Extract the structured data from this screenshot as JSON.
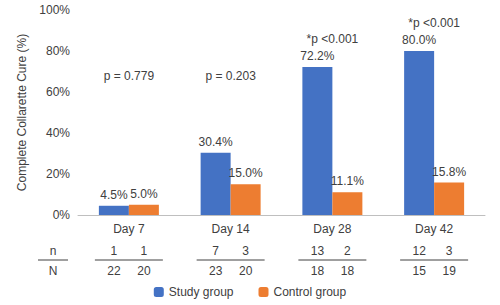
{
  "chart_data": {
    "type": "bar",
    "y_label": "Complete Collarette Cure (%)",
    "categories": [
      "Day 7",
      "Day 14",
      "Day 28",
      "Day 42"
    ],
    "series": [
      {
        "name": "Study group",
        "color": "#4472C4",
        "values": [
          4.5,
          30.4,
          72.2,
          80.0
        ],
        "value_labels": [
          "4.5%",
          "30.4%",
          "72.2%",
          "80.0%"
        ],
        "n": [
          1,
          7,
          13,
          12
        ],
        "N": [
          22,
          23,
          18,
          15
        ]
      },
      {
        "name": "Control group",
        "color": "#ED7D31",
        "values": [
          5.0,
          15.0,
          11.1,
          15.8
        ],
        "value_labels": [
          "5.0%",
          "15.0%",
          "11.1%",
          "15.8%"
        ],
        "n": [
          1,
          3,
          2,
          3
        ],
        "N": [
          20,
          20,
          18,
          19
        ]
      }
    ],
    "annotations": [
      "p = 0.779",
      "p = 0.203",
      "*p <0.001",
      "*p <0.001"
    ],
    "count_rows": [
      "n",
      "N"
    ],
    "ylim": [
      0,
      100
    ],
    "yticks": [
      {
        "value": 0,
        "label": "0%"
      },
      {
        "value": 20,
        "label": "20%"
      },
      {
        "value": 40,
        "label": "40%"
      },
      {
        "value": 60,
        "label": "60%"
      },
      {
        "value": 80,
        "label": "80%"
      },
      {
        "value": 100,
        "label": "100%"
      }
    ],
    "grid": false,
    "legend": "bottom",
    "data_labels": true
  }
}
